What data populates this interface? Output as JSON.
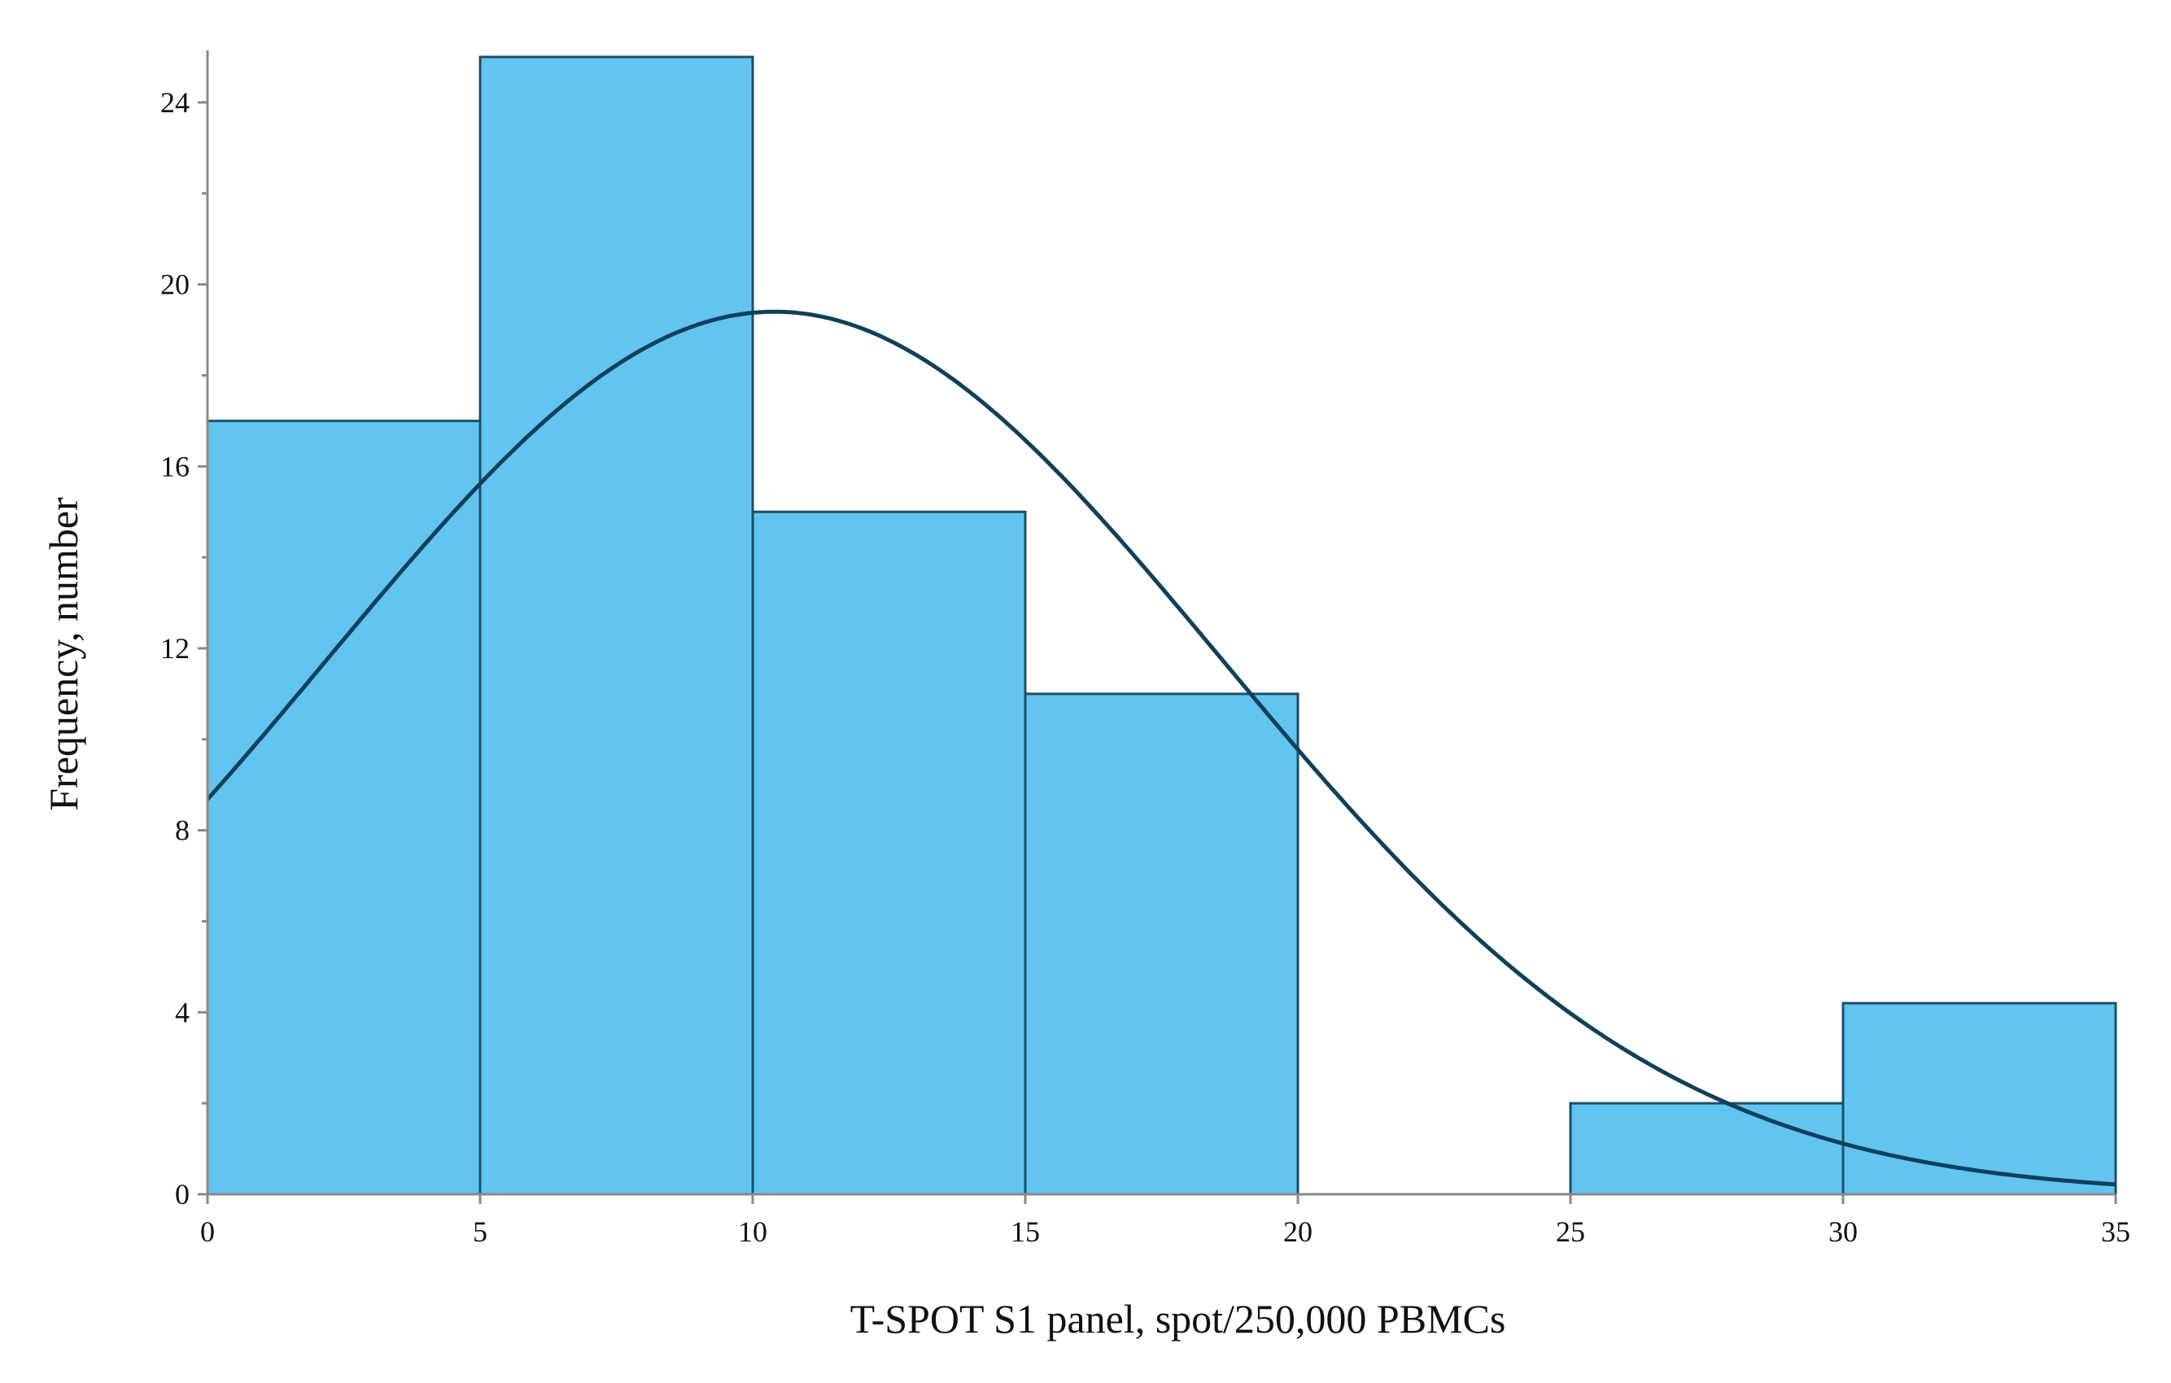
{
  "chart_data": {
    "type": "bar",
    "subtype": "histogram-with-normal-curve",
    "title": "",
    "xlabel": "T-SPOT S1 panel, spot/250,000 PBMCs",
    "ylabel": "Frequency, number",
    "xlim": [
      0,
      35
    ],
    "ylim": [
      0,
      25
    ],
    "x_ticks": [
      0,
      5,
      10,
      15,
      20,
      25,
      30,
      35
    ],
    "y_ticks": [
      0,
      4,
      8,
      12,
      16,
      20,
      24
    ],
    "bins": [
      {
        "start": 0,
        "end": 5,
        "value": 17
      },
      {
        "start": 5,
        "end": 10,
        "value": 25
      },
      {
        "start": 10,
        "end": 15,
        "value": 15
      },
      {
        "start": 15,
        "end": 20,
        "value": 11
      },
      {
        "start": 20,
        "end": 25,
        "value": 0
      },
      {
        "start": 25,
        "end": 30,
        "value": 2
      },
      {
        "start": 30,
        "end": 35,
        "value": 4.2
      }
    ],
    "normal_curve": {
      "mean": 10.4,
      "sd": 8.2,
      "peak": 19.4
    },
    "grid": false,
    "legend": "none",
    "colors": {
      "bar_fill": "#62c4f0",
      "bar_edge": "#1f4e67",
      "curve": "#10405a",
      "axis": "#888888"
    }
  }
}
